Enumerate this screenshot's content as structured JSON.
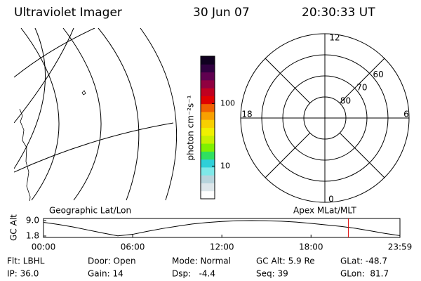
{
  "header": {
    "title": "Ultraviolet Imager",
    "date": "30 Jun 07",
    "time": "20:30:33 UT"
  },
  "left_panel": {
    "label": "Geographic Lat/Lon"
  },
  "colorbar": {
    "label": "photon cm⁻²s⁻¹",
    "log_scale": true,
    "range": [
      3,
      570
    ],
    "ticks": [
      10,
      100
    ],
    "colors": [
      "#ffffff",
      "#dde6ea",
      "#b8d4dc",
      "#7fe8e8",
      "#2fd0d8",
      "#30e060",
      "#80f000",
      "#c8f000",
      "#f0f000",
      "#f8d000",
      "#f8a000",
      "#f06000",
      "#e00000",
      "#c00020",
      "#900040",
      "#600050",
      "#300040",
      "#100020"
    ]
  },
  "polar": {
    "label": "Apex MLat/MLT",
    "lat_limit": 50,
    "lat_rings": [
      60,
      70,
      80
    ],
    "mlt_labels": {
      "top": "12",
      "left": "18",
      "right": "6",
      "bottom": "0"
    }
  },
  "chart_data": {
    "type": "line",
    "y_label": "GC Alt",
    "x": [
      0,
      1,
      2,
      3,
      4,
      5,
      6,
      7,
      8,
      9,
      10,
      11,
      12,
      13,
      14,
      15,
      16,
      17,
      18,
      19,
      20,
      21,
      22,
      23,
      23.983
    ],
    "series": [
      {
        "name": "GC Alt",
        "color": "#000000",
        "values": [
          8.2,
          7.2,
          6.0,
          4.6,
          3.2,
          1.9,
          2.6,
          4.0,
          5.3,
          6.4,
          7.4,
          8.1,
          8.6,
          8.9,
          9.0,
          8.9,
          8.7,
          8.3,
          7.7,
          7.0,
          6.3,
          5.4,
          4.2,
          3.0,
          2.0
        ]
      }
    ],
    "xlim": [
      0,
      23.983
    ],
    "ylim": [
      1.8,
      9.0
    ],
    "xticks": [
      {
        "value": 0,
        "label": "00:00"
      },
      {
        "value": 6,
        "label": "06:00"
      },
      {
        "value": 12,
        "label": "12:00"
      },
      {
        "value": 18,
        "label": "18:00"
      },
      {
        "value": 23.983,
        "label": "23:59"
      }
    ],
    "yticks": [
      1.8,
      {
        "value": 9.0,
        "label": "9.0"
      }
    ],
    "marker_x": 20.509,
    "marker_color": "#e00000"
  },
  "status": [
    [
      "Flt: LBHL",
      "Door: Open",
      "Mode: Normal",
      "GC Alt: 5.9 Re",
      "GLat: -48.7"
    ],
    [
      "IP: 36.0",
      "Gain: 14",
      "Dsp:   -4.4",
      "Seq: 39",
      "GLon:  81.7"
    ]
  ]
}
